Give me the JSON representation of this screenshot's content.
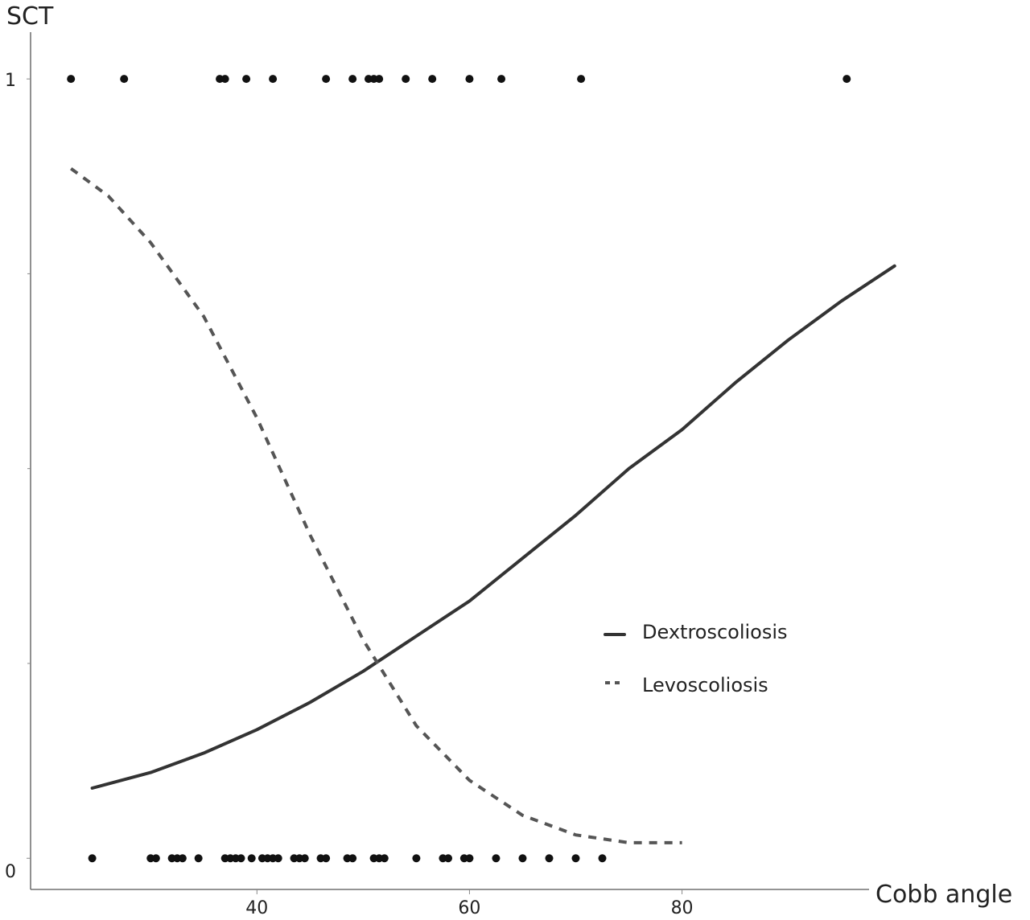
{
  "chart_data": {
    "type": "scatter",
    "title": "",
    "xlabel": "Cobb angle",
    "ylabel": "SCT",
    "xlim": [
      18.7,
      97.6
    ],
    "ylim": [
      -0.04,
      1.06
    ],
    "x_ticks": [
      40,
      60,
      80
    ],
    "x_tick_labels": [
      "40",
      "60",
      "80"
    ],
    "y_ticks": [
      0,
      1
    ],
    "y_tick_labels": [
      "0",
      "1"
    ],
    "grid": false,
    "legend_position": "right-middle",
    "series": [
      {
        "name": "Dextroscoliosis",
        "style": "solid",
        "color": "#333333",
        "x": [
          24.5,
          30,
          35,
          40,
          45,
          50,
          55,
          60,
          65,
          70,
          75,
          80,
          85,
          90,
          95,
          100
        ],
        "y": [
          0.09,
          0.11,
          0.135,
          0.165,
          0.2,
          0.24,
          0.285,
          0.33,
          0.385,
          0.44,
          0.5,
          0.55,
          0.61,
          0.665,
          0.715,
          0.76
        ]
      },
      {
        "name": "Levoscoliosis",
        "style": "dashed",
        "color": "#555555",
        "x": [
          22.5,
          26,
          30,
          35,
          40,
          45,
          50,
          55,
          60,
          65,
          70,
          75,
          80
        ],
        "y": [
          0.885,
          0.85,
          0.79,
          0.695,
          0.565,
          0.415,
          0.28,
          0.17,
          0.1,
          0.055,
          0.03,
          0.02,
          0.02
        ]
      }
    ],
    "observations_y1": [
      22.5,
      27.5,
      36.5,
      37,
      39,
      41.5,
      46.5,
      49,
      50.5,
      51,
      51.5,
      54,
      56.5,
      60,
      63,
      70.5,
      95.5
    ],
    "observations_y0": [
      24.5,
      30,
      30.5,
      32,
      32.5,
      33,
      34.5,
      37,
      37.5,
      38,
      38.5,
      39.5,
      40.5,
      41,
      41.5,
      42,
      43.5,
      44,
      44.5,
      46,
      46.5,
      48.5,
      49,
      51,
      51.5,
      52,
      55,
      57.5,
      58,
      59.5,
      60,
      62.5,
      65,
      67.5,
      70,
      72.5
    ]
  }
}
